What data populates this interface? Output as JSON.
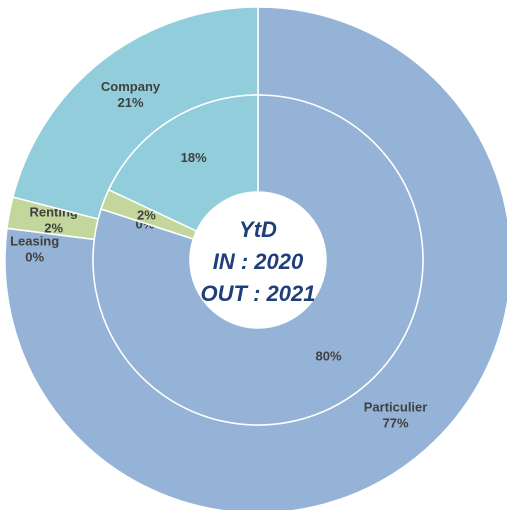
{
  "chart_data": {
    "type": "donut",
    "categories": [
      "Particulier",
      "Leasing",
      "Renting",
      "Company"
    ],
    "colors": [
      "#95b3d7",
      "#b3a2c7",
      "#c3d69b",
      "#92cddc"
    ],
    "series": [
      {
        "values": [
          77,
          0,
          2,
          21
        ],
        "value_labels": [
          "77%",
          "0%",
          "2%",
          "21%"
        ]
      },
      {
        "values": [
          80,
          0,
          2,
          18
        ],
        "value_labels": [
          "80%",
          "0%",
          "2%",
          "18%"
        ]
      }
    ],
    "center_text": [
      "YtD",
      "IN : 2020",
      "OUT : 2021"
    ]
  }
}
